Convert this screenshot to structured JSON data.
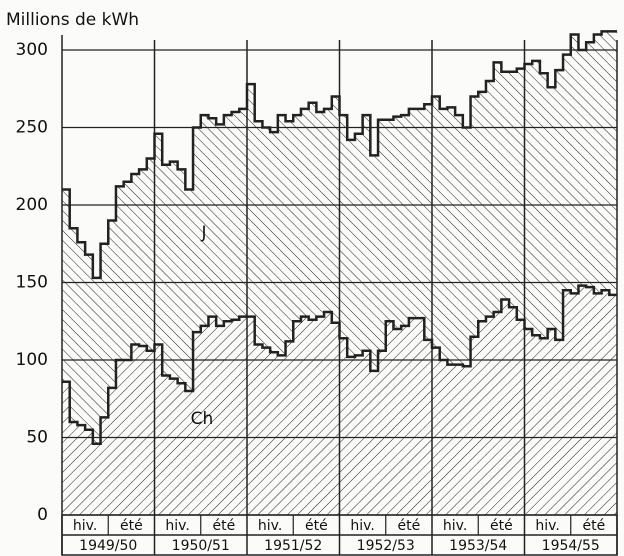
{
  "chart_data": {
    "type": "stacked-step-area",
    "title": "Millions de kWh",
    "seasons": [
      "hiv.",
      "été",
      "hiv.",
      "été",
      "hiv.",
      "été",
      "hiv.",
      "été",
      "hiv.",
      "été",
      "hiv.",
      "été"
    ],
    "years": [
      "1949/50",
      "1950/51",
      "1951/52",
      "1952/53",
      "1953/54",
      "1954/55"
    ],
    "series": [
      {
        "name": "Ch",
        "color": "#222222",
        "values": [
          86,
          60,
          58,
          55,
          46,
          63,
          82,
          100,
          100,
          110,
          109,
          106,
          110,
          90,
          88,
          85,
          80,
          118,
          122,
          128,
          122,
          125,
          126,
          128,
          128,
          110,
          108,
          105,
          103,
          112,
          125,
          128,
          126,
          128,
          131,
          124,
          114,
          102,
          103,
          106,
          93,
          106,
          125,
          120,
          122,
          127,
          127,
          113,
          108,
          100,
          97,
          97,
          96,
          115,
          125,
          128,
          131,
          139,
          134,
          126,
          120,
          116,
          114,
          120,
          113,
          145,
          143,
          148,
          147,
          143,
          145,
          142
        ]
      },
      {
        "name": "J",
        "color": "#222222",
        "values": [
          124,
          125,
          118,
          113,
          107,
          112,
          108,
          112,
          115,
          110,
          114,
          124,
          136,
          136,
          140,
          138,
          130,
          132,
          136,
          128,
          130,
          133,
          134,
          134,
          150,
          144,
          142,
          142,
          155,
          142,
          133,
          134,
          140,
          132,
          131,
          146,
          144,
          140,
          143,
          152,
          139,
          149,
          130,
          137,
          136,
          135,
          135,
          152,
          162,
          162,
          166,
          161,
          154,
          155,
          148,
          152,
          161,
          147,
          152,
          162,
          171,
          177,
          171,
          156,
          174,
          152,
          167,
          152,
          158,
          167,
          167,
          170
        ]
      }
    ],
    "ylim": [
      0,
      320
    ],
    "yticks": [
      0,
      50,
      100,
      150,
      200,
      250,
      300
    ],
    "grid": true
  }
}
